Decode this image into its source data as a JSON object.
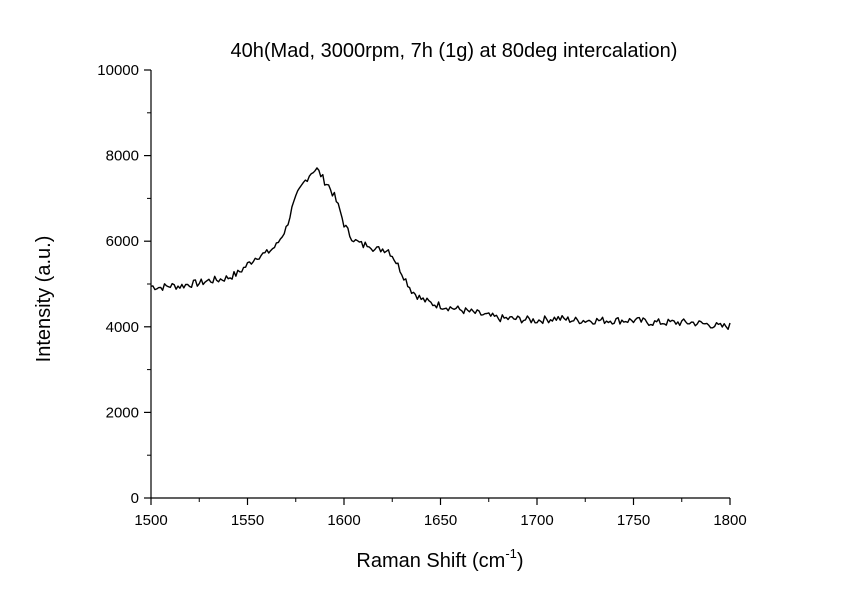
{
  "chart_data": {
    "type": "line",
    "title": "40h(Mad, 3000rpm, 7h (1g) at 80deg intercalation)",
    "xlabel_main": "Raman Shift (cm",
    "xlabel_sup": "-1",
    "xlabel_close": ")",
    "ylabel": "Intensity (a.u.)",
    "xlim": [
      1500,
      1800
    ],
    "ylim": [
      0,
      10000
    ],
    "xticks": [
      1500,
      1550,
      1600,
      1650,
      1700,
      1750,
      1800
    ],
    "yticks": [
      0,
      2000,
      4000,
      6000,
      8000,
      10000
    ],
    "grid": false,
    "legend": "none",
    "line_color": "#000000",
    "series": [
      {
        "x": [
          1500,
          1505,
          1510,
          1515,
          1520,
          1525,
          1530,
          1535,
          1540,
          1545,
          1550,
          1555,
          1560,
          1565,
          1570,
          1573,
          1576,
          1579,
          1582,
          1584,
          1586,
          1588,
          1590,
          1592,
          1595,
          1598,
          1600,
          1603,
          1606,
          1610,
          1613,
          1616,
          1620,
          1623,
          1626,
          1629,
          1632,
          1635,
          1640,
          1645,
          1650,
          1655,
          1660,
          1665,
          1670,
          1675,
          1680,
          1690,
          1700,
          1710,
          1720,
          1730,
          1740,
          1750,
          1760,
          1770,
          1780,
          1790,
          1795,
          1800
        ],
        "y": [
          4950,
          4920,
          4960,
          4950,
          5000,
          5020,
          5080,
          5100,
          5150,
          5250,
          5450,
          5650,
          5720,
          5900,
          6300,
          6750,
          7100,
          7350,
          7550,
          7650,
          7680,
          7550,
          7400,
          7300,
          7050,
          6700,
          6400,
          6150,
          6000,
          5900,
          5950,
          5800,
          5820,
          5800,
          5600,
          5350,
          5100,
          4850,
          4650,
          4550,
          4500,
          4450,
          4400,
          4350,
          4300,
          4250,
          4200,
          4180,
          4150,
          4200,
          4150,
          4150,
          4150,
          4150,
          4100,
          4100,
          4100,
          4050,
          4000,
          4020
        ]
      }
    ]
  }
}
